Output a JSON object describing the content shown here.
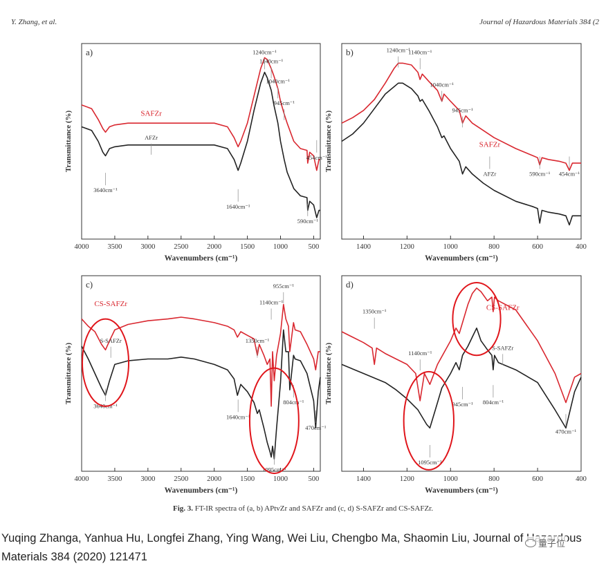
{
  "header": {
    "left": "Y. Zhang, et al.",
    "right": "Journal of Hazardous Materials 384 (2"
  },
  "figure": {
    "caption_label": "Fig. 3.",
    "caption_text": "FT-IR spectra of (a, b) APtvZr and SAFZr and (c, d) S-SAFZr and CS-SAFZr.",
    "xlabel": "Wavenumbers (cm⁻¹)",
    "ylabel": "Transmittance (%)",
    "colors": {
      "red": "#d9272f",
      "black": "#222222",
      "circle": "#e0151b"
    }
  },
  "chart_data": [
    {
      "panel_label": "a)",
      "type": "line",
      "xlabel": "Wavenumbers (cm⁻¹)",
      "ylabel": "Transmittance (%)",
      "xlim": [
        4000,
        400
      ],
      "xticks": [
        4000,
        3500,
        3000,
        2500,
        2000,
        1500,
        1000,
        500
      ],
      "series": [
        {
          "name": "SAFZr",
          "color": "#d9272f",
          "x": [
            4000,
            3850,
            3750,
            3680,
            3640,
            3580,
            3500,
            3300,
            3000,
            2500,
            2000,
            1800,
            1700,
            1640,
            1600,
            1500,
            1400,
            1300,
            1240,
            1200,
            1140,
            1100,
            1040,
            1000,
            945,
            900,
            800,
            700,
            600,
            590,
            560,
            500,
            454,
            420,
            400
          ],
          "y": [
            0.7,
            0.68,
            0.62,
            0.57,
            0.55,
            0.58,
            0.59,
            0.6,
            0.6,
            0.6,
            0.6,
            0.58,
            0.52,
            0.47,
            0.5,
            0.6,
            0.75,
            0.9,
            0.96,
            0.95,
            0.9,
            0.86,
            0.79,
            0.72,
            0.65,
            0.6,
            0.5,
            0.46,
            0.45,
            0.38,
            0.44,
            0.42,
            0.34,
            0.4,
            0.4
          ]
        },
        {
          "name": "AFZr",
          "color": "#222222",
          "x": [
            4000,
            3850,
            3750,
            3680,
            3640,
            3580,
            3500,
            3300,
            3000,
            2500,
            2000,
            1800,
            1700,
            1640,
            1600,
            1500,
            1400,
            1300,
            1240,
            1200,
            1140,
            1100,
            1040,
            1000,
            945,
            900,
            800,
            700,
            600,
            590,
            560,
            500,
            454,
            420,
            400
          ],
          "y": [
            0.58,
            0.56,
            0.5,
            0.44,
            0.42,
            0.46,
            0.47,
            0.48,
            0.48,
            0.48,
            0.48,
            0.46,
            0.4,
            0.34,
            0.38,
            0.5,
            0.67,
            0.82,
            0.88,
            0.85,
            0.78,
            0.7,
            0.6,
            0.5,
            0.4,
            0.33,
            0.24,
            0.2,
            0.19,
            0.12,
            0.17,
            0.15,
            0.08,
            0.12,
            0.12
          ]
        }
      ],
      "annotations": [
        {
          "text": "1240cm⁻¹",
          "x": 1240,
          "y": 0.98
        },
        {
          "text": "1140cm⁻¹",
          "x": 1140,
          "y": 0.93
        },
        {
          "text": "1040cm⁻¹",
          "x": 1040,
          "y": 0.82
        },
        {
          "text": "945cm⁻¹",
          "x": 945,
          "y": 0.7
        },
        {
          "text": "454cm⁻¹",
          "x": 454,
          "y": 0.4
        },
        {
          "text": "590cm⁻¹",
          "x": 590,
          "y": 0.05
        },
        {
          "text": "1640cm⁻¹",
          "x": 1640,
          "y": 0.13
        },
        {
          "text": "3640cm⁻¹",
          "x": 3640,
          "y": 0.22
        },
        {
          "text": "SAFZr",
          "x": 2950,
          "y": 0.64,
          "color": "#d9272f"
        },
        {
          "text": "AFZr",
          "x": 2950,
          "y": 0.51
        }
      ],
      "highlights": []
    },
    {
      "panel_label": "b)",
      "type": "line",
      "xlabel": "Wavenumbers (cm⁻¹)",
      "ylabel": "Transmittance (%)",
      "xlim": [
        1500,
        400
      ],
      "xticks": [
        1400,
        1200,
        1000,
        800,
        600,
        400
      ],
      "series": [
        {
          "name": "SAFZr",
          "color": "#d9272f",
          "x": [
            1500,
            1450,
            1400,
            1350,
            1300,
            1260,
            1240,
            1220,
            1180,
            1150,
            1140,
            1130,
            1100,
            1060,
            1040,
            1030,
            1000,
            960,
            945,
            930,
            900,
            850,
            800,
            700,
            620,
            600,
            590,
            580,
            550,
            500,
            470,
            454,
            440,
            400
          ],
          "y": [
            0.6,
            0.63,
            0.67,
            0.73,
            0.82,
            0.9,
            0.93,
            0.93,
            0.92,
            0.88,
            0.84,
            0.87,
            0.83,
            0.78,
            0.72,
            0.76,
            0.72,
            0.67,
            0.6,
            0.64,
            0.6,
            0.56,
            0.52,
            0.46,
            0.42,
            0.41,
            0.37,
            0.41,
            0.4,
            0.39,
            0.38,
            0.34,
            0.38,
            0.38
          ]
        },
        {
          "name": "AFZr",
          "color": "#222222",
          "x": [
            1500,
            1450,
            1400,
            1350,
            1300,
            1260,
            1240,
            1220,
            1180,
            1150,
            1140,
            1130,
            1100,
            1060,
            1040,
            1030,
            1000,
            960,
            945,
            930,
            900,
            850,
            800,
            700,
            620,
            600,
            590,
            580,
            550,
            500,
            470,
            454,
            440,
            400
          ],
          "y": [
            0.5,
            0.54,
            0.6,
            0.68,
            0.76,
            0.8,
            0.82,
            0.82,
            0.79,
            0.75,
            0.72,
            0.73,
            0.67,
            0.58,
            0.52,
            0.53,
            0.46,
            0.39,
            0.32,
            0.36,
            0.32,
            0.27,
            0.23,
            0.17,
            0.14,
            0.13,
            0.05,
            0.12,
            0.11,
            0.1,
            0.09,
            0.04,
            0.09,
            0.09
          ]
        }
      ],
      "annotations": [
        {
          "text": "1240cm⁻¹",
          "x": 1240,
          "y": 0.99
        },
        {
          "text": "1140cm⁻¹",
          "x": 1140,
          "y": 0.98
        },
        {
          "text": "1040cm⁻¹",
          "x": 1040,
          "y": 0.8
        },
        {
          "text": "945cm⁻¹",
          "x": 945,
          "y": 0.66
        },
        {
          "text": "SAFZr",
          "x": 820,
          "y": 0.47,
          "color": "#d9272f"
        },
        {
          "text": "AFZr",
          "x": 820,
          "y": 0.31
        },
        {
          "text": "590cm⁻¹",
          "x": 590,
          "y": 0.31
        },
        {
          "text": "454cm⁻¹",
          "x": 454,
          "y": 0.31
        }
      ],
      "highlights": []
    },
    {
      "panel_label": "c)",
      "type": "line",
      "xlabel": "Wavenumbers (cm⁻¹)",
      "ylabel": "Transmittance (%)",
      "xlim": [
        4000,
        400
      ],
      "xticks": [
        4000,
        3500,
        3000,
        2500,
        2000,
        1500,
        1000,
        500
      ],
      "series": [
        {
          "name": "CS-SAFZr",
          "color": "#d9272f",
          "x": [
            4000,
            3900,
            3800,
            3700,
            3640,
            3580,
            3500,
            3300,
            3000,
            2700,
            2500,
            2300,
            2000,
            1800,
            1700,
            1650,
            1600,
            1500,
            1400,
            1350,
            1320,
            1250,
            1200,
            1160,
            1140,
            1120,
            1095,
            1060,
            1000,
            955,
            920,
            880,
            860,
            804,
            780,
            700,
            600,
            500,
            470,
            430,
            400
          ],
          "y": [
            0.8,
            0.76,
            0.73,
            0.66,
            0.63,
            0.68,
            0.74,
            0.77,
            0.79,
            0.8,
            0.81,
            0.8,
            0.78,
            0.76,
            0.74,
            0.7,
            0.73,
            0.71,
            0.69,
            0.6,
            0.66,
            0.6,
            0.55,
            0.58,
            0.32,
            0.62,
            0.46,
            0.6,
            0.72,
            0.88,
            0.8,
            0.76,
            0.62,
            0.78,
            0.74,
            0.73,
            0.66,
            0.58,
            0.52,
            0.62,
            0.62
          ]
        },
        {
          "name": "S-SAFZr",
          "color": "#222222",
          "x": [
            4000,
            3900,
            3800,
            3700,
            3640,
            3580,
            3500,
            3300,
            3000,
            2700,
            2500,
            2300,
            2000,
            1800,
            1700,
            1650,
            1600,
            1500,
            1400,
            1350,
            1320,
            1250,
            1200,
            1160,
            1140,
            1120,
            1095,
            1060,
            1000,
            955,
            920,
            880,
            860,
            804,
            780,
            700,
            600,
            500,
            470,
            430,
            400
          ],
          "y": [
            0.65,
            0.58,
            0.5,
            0.42,
            0.38,
            0.46,
            0.55,
            0.57,
            0.58,
            0.58,
            0.59,
            0.58,
            0.55,
            0.52,
            0.47,
            0.38,
            0.44,
            0.4,
            0.34,
            0.28,
            0.3,
            0.2,
            0.12,
            0.07,
            0.04,
            0.1,
            0.03,
            0.2,
            0.45,
            0.74,
            0.62,
            0.62,
            0.41,
            0.6,
            0.58,
            0.57,
            0.5,
            0.35,
            0.2,
            0.4,
            0.48
          ]
        }
      ],
      "annotations": [
        {
          "text": "CS-SAFZr",
          "x": 3560,
          "y": 0.87,
          "color": "#d9272f"
        },
        {
          "text": "S-SAFZr",
          "x": 3560,
          "y": 0.67
        },
        {
          "text": "955cm⁻¹",
          "x": 955,
          "y": 0.97
        },
        {
          "text": "1140cm⁻¹",
          "x": 1140,
          "y": 0.88
        },
        {
          "text": "1350cm⁻¹",
          "x": 1350,
          "y": 0.67
        },
        {
          "text": "1640cm⁻¹",
          "x": 1640,
          "y": 0.25
        },
        {
          "text": "804cm⁻¹",
          "x": 804,
          "y": 0.33
        },
        {
          "text": "470cm⁻¹",
          "x": 470,
          "y": 0.19
        },
        {
          "text": "1095cm⁻¹",
          "x": 1095,
          "y": -0.04
        },
        {
          "text": "3640cm⁻¹",
          "x": 3640,
          "y": 0.31
        }
      ],
      "highlights": [
        {
          "cx": 3640,
          "cy": 0.56,
          "rx_x": 350,
          "ry": 0.24
        },
        {
          "cx": 1095,
          "cy": 0.24,
          "rx_x": 370,
          "ry": 0.29
        }
      ]
    },
    {
      "panel_label": "d)",
      "type": "line",
      "xlabel": "Wavenumbers (cm⁻¹)",
      "ylabel": "Transmittance (%)",
      "xlim": [
        1500,
        400
      ],
      "xticks": [
        1400,
        1200,
        1000,
        800,
        600,
        400
      ],
      "series": [
        {
          "name": "CS-SAFZr",
          "color": "#d9272f",
          "x": [
            1500,
            1450,
            1400,
            1360,
            1350,
            1340,
            1300,
            1250,
            1200,
            1160,
            1140,
            1120,
            1095,
            1060,
            1000,
            975,
            960,
            945,
            920,
            900,
            880,
            860,
            830,
            810,
            804,
            798,
            780,
            700,
            600,
            520,
            470,
            430,
            400
          ],
          "y": [
            0.73,
            0.7,
            0.67,
            0.64,
            0.55,
            0.64,
            0.61,
            0.58,
            0.55,
            0.5,
            0.35,
            0.5,
            0.44,
            0.55,
            0.68,
            0.75,
            0.72,
            0.78,
            0.88,
            0.94,
            0.97,
            0.95,
            0.9,
            0.92,
            0.84,
            0.92,
            0.9,
            0.85,
            0.68,
            0.5,
            0.34,
            0.48,
            0.5
          ]
        },
        {
          "name": "S-SAFZr",
          "color": "#222222",
          "x": [
            1500,
            1400,
            1300,
            1250,
            1200,
            1150,
            1110,
            1095,
            1070,
            1040,
            1000,
            975,
            960,
            945,
            920,
            900,
            880,
            860,
            830,
            810,
            804,
            798,
            780,
            700,
            600,
            520,
            470,
            430,
            400
          ],
          "y": [
            0.55,
            0.5,
            0.45,
            0.41,
            0.36,
            0.3,
            0.22,
            0.2,
            0.3,
            0.42,
            0.5,
            0.56,
            0.52,
            0.6,
            0.65,
            0.7,
            0.75,
            0.68,
            0.63,
            0.6,
            0.52,
            0.6,
            0.56,
            0.52,
            0.45,
            0.3,
            0.2,
            0.4,
            0.48
          ]
        }
      ],
      "annotations": [
        {
          "text": "1350cm⁻¹",
          "x": 1350,
          "y": 0.83
        },
        {
          "text": "1140cm⁻¹",
          "x": 1140,
          "y": 0.6
        },
        {
          "text": "CS-SAFZr",
          "x": 760,
          "y": 0.85,
          "color": "#d9272f"
        },
        {
          "text": "S-SAFZr",
          "x": 760,
          "y": 0.63
        },
        {
          "text": "945cm⁻¹",
          "x": 945,
          "y": 0.32
        },
        {
          "text": "804cm⁻¹",
          "x": 804,
          "y": 0.33
        },
        {
          "text": "470cm⁻¹",
          "x": 470,
          "y": 0.17
        },
        {
          "text": "1095cm⁻¹",
          "x": 1095,
          "y": 0.0
        }
      ],
      "highlights": [
        {
          "cx": 1100,
          "cy": 0.24,
          "rx_x": 115,
          "ry": 0.27
        },
        {
          "cx": 880,
          "cy": 0.8,
          "rx_x": 110,
          "ry": 0.2
        }
      ]
    }
  ],
  "citation": {
    "text": "Yuqing Zhanga, Yanhua Hu, Longfei Zhang, Ying Wang, Wei Liu, Chengbo Ma, Shaomin Liu, Journal of Hazardous Materials 384 (2020) 121471"
  },
  "watermark": {
    "text": "量子位"
  }
}
